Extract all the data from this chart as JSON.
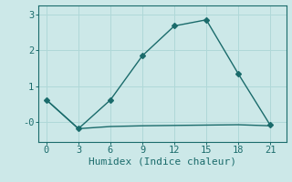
{
  "line1_x": [
    0,
    3,
    6,
    9,
    12,
    15,
    18,
    21
  ],
  "line1_y": [
    0.62,
    -0.18,
    0.62,
    1.85,
    2.68,
    2.85,
    1.35,
    -0.08
  ],
  "line2_x": [
    0,
    3,
    6,
    9,
    12,
    15,
    18,
    21
  ],
  "line2_y": [
    0.62,
    -0.18,
    -0.12,
    -0.1,
    -0.09,
    -0.08,
    -0.07,
    -0.1
  ],
  "color": "#1a6b6b",
  "bg_color": "#cce8e8",
  "grid_color": "#b0d8d8",
  "xlabel": "Humidex (Indice chaleur)",
  "xlim": [
    -0.8,
    22.5
  ],
  "ylim": [
    -0.55,
    3.25
  ],
  "xticks": [
    0,
    3,
    6,
    9,
    12,
    15,
    18,
    21
  ],
  "yticks": [
    0,
    1,
    2,
    3
  ],
  "ytick_labels": [
    "-0",
    "1",
    "2",
    "3"
  ],
  "marker": "D",
  "markersize": 3,
  "linewidth": 1.0,
  "xlabel_fontsize": 8,
  "tick_fontsize": 7.5,
  "font_family": "monospace"
}
